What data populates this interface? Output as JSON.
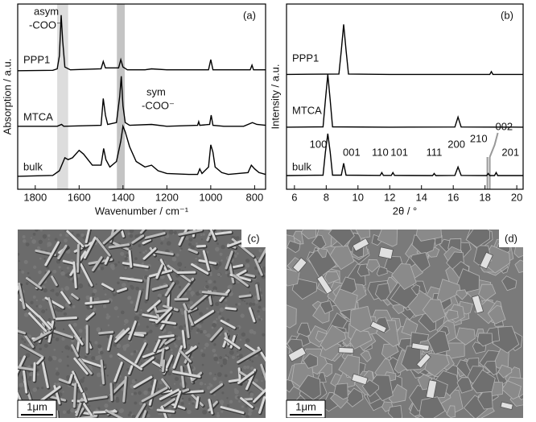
{
  "chart_data": [
    {
      "type": "line",
      "panel_label": "(a)",
      "x_label": "Wavenumber / cm⁻¹",
      "y_label": "Absorption / a.u.",
      "xlim": [
        1880,
        750
      ],
      "ylim": [
        0,
        10
      ],
      "xticks": [
        1800,
        1600,
        1400,
        1200,
        1000,
        800
      ],
      "bands": [
        {
          "range": [
            1700,
            1650
          ],
          "color": "#dddddd"
        },
        {
          "range": [
            1428,
            1392
          ],
          "color": "#c4c4c4"
        }
      ],
      "annotations": [
        {
          "lines": [
            "asym",
            "-COO⁻"
          ]
        },
        {
          "lines": [
            "sym",
            "-COO⁻"
          ]
        }
      ],
      "series": [
        {
          "name": "PPP1",
          "color": "#000000",
          "x": [
            1880,
            1720,
            1700,
            1690,
            1682,
            1675,
            1665,
            1640,
            1500,
            1490,
            1480,
            1420,
            1410,
            1400,
            1380,
            1300,
            1270,
            1200,
            1010,
            1000,
            990,
            820,
            812,
            805,
            750
          ],
          "values": [
            6.4,
            6.42,
            6.5,
            7.2,
            9.4,
            8.0,
            6.6,
            6.45,
            6.5,
            6.9,
            6.55,
            6.55,
            7.0,
            6.6,
            6.45,
            6.45,
            6.5,
            6.45,
            6.45,
            7.0,
            6.45,
            6.45,
            6.7,
            6.45,
            6.45
          ]
        },
        {
          "name": "MTCA",
          "color": "#000000",
          "x": [
            1880,
            1700,
            1680,
            1670,
            1500,
            1490,
            1480,
            1470,
            1430,
            1415,
            1408,
            1400,
            1390,
            1370,
            1270,
            1200,
            1060,
            1055,
            1050,
            1005,
            998,
            990,
            940,
            850,
            810,
            790,
            750
          ],
          "values": [
            3.4,
            3.4,
            3.5,
            3.4,
            3.45,
            4.9,
            4.0,
            3.5,
            3.6,
            5.0,
            6.1,
            4.5,
            3.6,
            3.45,
            3.5,
            3.4,
            3.45,
            3.65,
            3.45,
            3.5,
            4.0,
            3.45,
            3.4,
            3.4,
            3.6,
            3.5,
            3.45
          ]
        },
        {
          "name": "bulk",
          "color": "#000000",
          "x": [
            1880,
            1720,
            1690,
            1665,
            1650,
            1630,
            1600,
            1580,
            1540,
            1500,
            1488,
            1478,
            1460,
            1430,
            1410,
            1400,
            1390,
            1370,
            1340,
            1300,
            1270,
            1240,
            1200,
            1100,
            1060,
            1050,
            1040,
            1010,
            1000,
            990,
            980,
            950,
            920,
            830,
            815,
            800,
            780,
            750
          ],
          "values": [
            0.7,
            0.75,
            1.0,
            1.7,
            1.6,
            1.7,
            2.1,
            1.9,
            1.3,
            1.3,
            2.2,
            1.6,
            1.2,
            1.5,
            2.6,
            3.4,
            3.1,
            2.3,
            1.5,
            1.2,
            1.3,
            1.0,
            0.85,
            0.8,
            0.8,
            1.1,
            0.85,
            1.2,
            2.4,
            2.0,
            1.2,
            0.9,
            0.8,
            0.9,
            1.3,
            1.1,
            0.9,
            0.8
          ]
        }
      ]
    },
    {
      "type": "line",
      "panel_label": "(b)",
      "x_label": "2θ / °",
      "y_label": "Intensity / a.u.",
      "xlim": [
        5.5,
        20.4
      ],
      "ylim": [
        0,
        10
      ],
      "xticks": [
        6,
        8,
        10,
        12,
        14,
        16,
        18,
        20
      ],
      "reference_lines": [
        {
          "x": 18.15,
          "color": "#999999"
        },
        {
          "x": 18.3,
          "color": "#999999"
        }
      ],
      "peak_labels": [
        {
          "text": "100",
          "x": 7.5
        },
        {
          "text": "001",
          "x": 9.6
        },
        {
          "text": "110",
          "x": 11.4
        },
        {
          "text": "101",
          "x": 12.6
        },
        {
          "text": "111",
          "x": 14.8
        },
        {
          "text": "200",
          "x": 16.2
        },
        {
          "text": "210",
          "x": 17.6
        },
        {
          "text": "002",
          "x": 19.2
        },
        {
          "text": "201",
          "x": 19.6
        }
      ],
      "series": [
        {
          "name": "PPP1",
          "color": "#000000",
          "x": [
            5.5,
            8.8,
            8.95,
            9.1,
            9.25,
            9.4,
            12.0,
            18.3,
            18.4,
            18.5,
            20.4
          ],
          "values": [
            6.2,
            6.22,
            7.5,
            8.9,
            7.5,
            6.22,
            6.2,
            6.2,
            6.35,
            6.2,
            6.2
          ]
        },
        {
          "name": "MTCA",
          "color": "#000000",
          "x": [
            5.5,
            7.8,
            7.95,
            8.1,
            8.25,
            8.4,
            12.0,
            16.1,
            16.3,
            16.5,
            20.4
          ],
          "values": [
            3.35,
            3.37,
            4.8,
            6.2,
            4.8,
            3.37,
            3.35,
            3.36,
            3.9,
            3.36,
            3.35
          ]
        },
        {
          "name": "bulk",
          "color": "#000000",
          "x": [
            5.5,
            7.8,
            7.95,
            8.1,
            8.25,
            8.4,
            8.95,
            9.1,
            9.25,
            11.4,
            11.5,
            11.6,
            12.1,
            12.2,
            12.3,
            14.7,
            14.8,
            14.9,
            16.1,
            16.3,
            16.5,
            18.1,
            18.2,
            18.3,
            18.6,
            18.7,
            18.8,
            20.4
          ],
          "values": [
            0.74,
            0.76,
            2.0,
            3.0,
            2.0,
            0.76,
            0.76,
            1.4,
            0.76,
            0.75,
            0.9,
            0.75,
            0.75,
            0.9,
            0.75,
            0.74,
            0.85,
            0.74,
            0.75,
            1.2,
            0.75,
            0.74,
            0.85,
            0.74,
            0.74,
            0.9,
            0.74,
            0.74
          ]
        }
      ]
    }
  ],
  "images": [
    {
      "label": "(c)",
      "scale_bar": "1μm"
    },
    {
      "label": "(d)",
      "scale_bar": "1μm"
    }
  ]
}
